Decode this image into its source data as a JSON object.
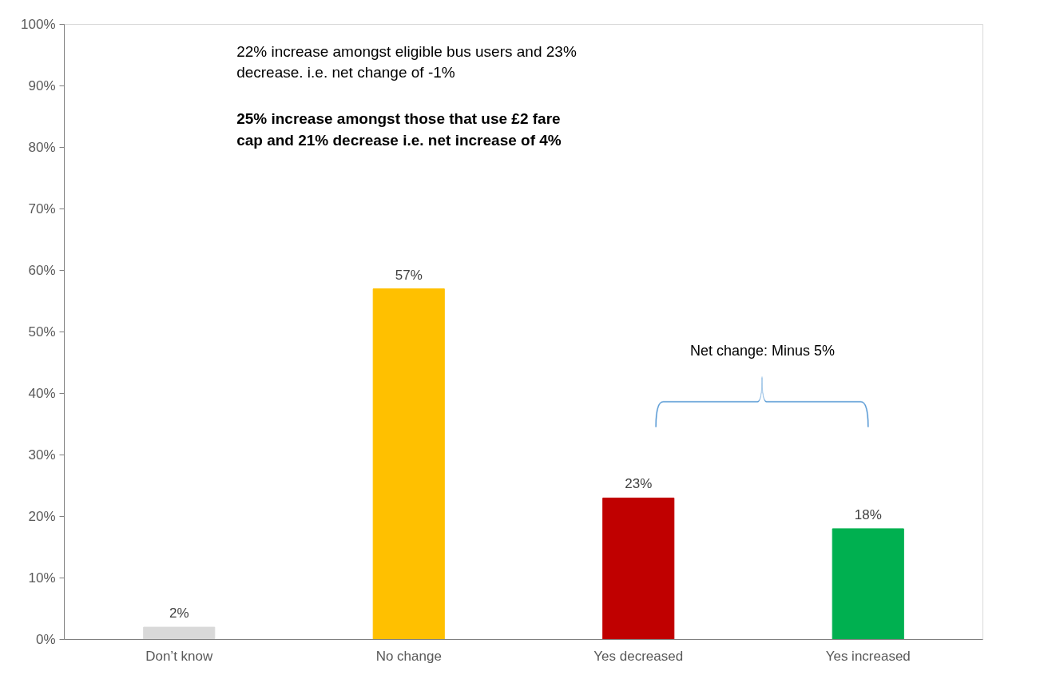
{
  "chart_data": {
    "type": "bar",
    "categories": [
      "Don’t know",
      "No change",
      "Yes decreased",
      "Yes increased"
    ],
    "values": [
      2,
      57,
      23,
      18
    ],
    "colors": [
      "#d9d9d9",
      "#ffc000",
      "#c00000",
      "#00b050"
    ],
    "ylim": [
      0,
      100
    ],
    "yticks": [
      {
        "value": 0,
        "label": "0%"
      },
      {
        "value": 10,
        "label": "10%"
      },
      {
        "value": 20,
        "label": "20%"
      },
      {
        "value": 30,
        "label": "30%"
      },
      {
        "value": 40,
        "label": "40%"
      },
      {
        "value": 50,
        "label": "50%"
      },
      {
        "value": 60,
        "label": "60%"
      },
      {
        "value": 70,
        "label": "70%"
      },
      {
        "value": 80,
        "label": "80%"
      },
      {
        "value": 90,
        "label": "90%"
      },
      {
        "value": 100,
        "label": "100%"
      }
    ],
    "value_labels": [
      "2%",
      "57%",
      "23%",
      "18%"
    ],
    "grid": false,
    "annotations": [
      "22% increase amongst eligible bus users and 23%\ndecrease. i.e. net change of -1%",
      "25% increase amongst those that use £2 fare\ncap and 21% decrease i.e. net increase of 4%",
      "Net change: Minus 5%"
    ]
  }
}
